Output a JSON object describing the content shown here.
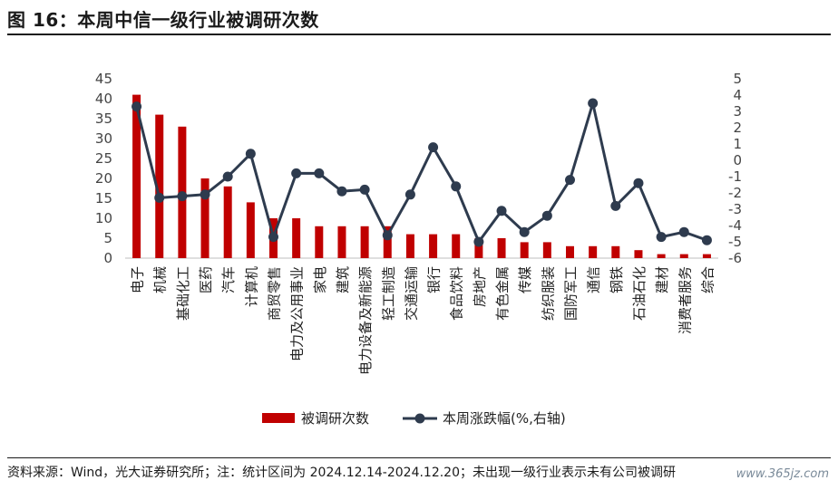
{
  "title": "图 16：本周中信一级行业被调研次数",
  "source": "资料来源：Wind，光大证券研究所；注：统计区间为 2024.12.14-2024.12.20；未出现一级行业表示未有公司被调研",
  "watermark": "www.365jz.com",
  "colors": {
    "bar": "#c00000",
    "line": "#2e3b4e"
  },
  "chart_data": {
    "type": "bar",
    "categories": [
      "电子",
      "机械",
      "基础化工",
      "医药",
      "汽车",
      "计算机",
      "商贸零售",
      "电力及公用事业",
      "家电",
      "建筑",
      "电力设备及新能源",
      "轻工制造",
      "交通运输",
      "银行",
      "食品饮料",
      "房地产",
      "有色金属",
      "传媒",
      "纺织服装",
      "国防军工",
      "通信",
      "钢铁",
      "石油石化",
      "建材",
      "消费者服务",
      "综合"
    ],
    "series": [
      {
        "name": "被调研次数",
        "type": "bar",
        "axis": "left",
        "values": [
          41,
          36,
          33,
          20,
          18,
          14,
          10,
          10,
          8,
          8,
          8,
          8,
          6,
          6,
          6,
          5,
          5,
          4,
          4,
          3,
          3,
          3,
          2,
          1,
          1,
          1
        ]
      },
      {
        "name": "本周涨跌幅(%,右轴)",
        "type": "line",
        "axis": "right",
        "values": [
          3.3,
          -2.3,
          -2.2,
          -2.1,
          -1.0,
          0.4,
          -4.7,
          -0.8,
          -0.8,
          -1.9,
          -1.8,
          -4.6,
          -2.1,
          0.8,
          -1.6,
          -5.0,
          -3.1,
          -4.4,
          -3.4,
          -1.2,
          3.5,
          -2.8,
          -1.4,
          -4.7,
          -4.4,
          -4.9
        ]
      }
    ],
    "yleft": {
      "min": 0,
      "max": 45,
      "ticks": [
        0,
        5,
        10,
        15,
        20,
        25,
        30,
        35,
        40,
        45
      ]
    },
    "yright": {
      "min": -6,
      "max": 5,
      "ticks": [
        5,
        4,
        3,
        2,
        1,
        0,
        -1,
        -2,
        -3,
        -4,
        -5,
        -6
      ]
    },
    "legend": [
      "被调研次数",
      "本周涨跌幅(%,右轴)"
    ],
    "legend_position": "bottom"
  }
}
